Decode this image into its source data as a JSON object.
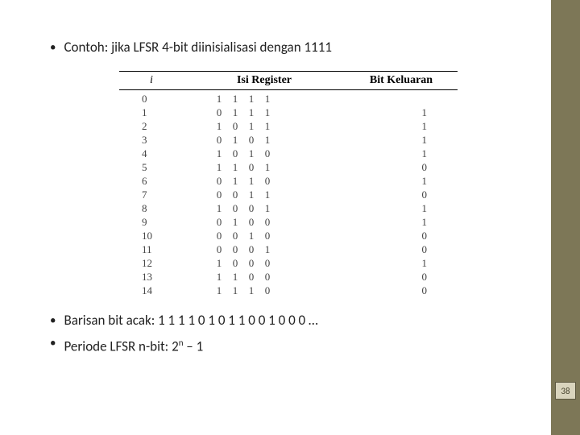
{
  "bullets": {
    "top": "Contoh: jika LFSR 4-bit diinisialisasi dengan 1111",
    "seq_prefix": "Barisan bit acak: ",
    "seq_bits": "1 1 1 1 0 1 0 1 1 0 0 1 0 0 0 …",
    "period_prefix": "Periode LFSR n-bit: 2",
    "period_exp": "n",
    "period_suffix": " – 1"
  },
  "table": {
    "hdr_i": "i",
    "hdr_reg": "Isi Register",
    "hdr_out": "Bit Keluaran",
    "rows": [
      {
        "i": "0",
        "r": [
          "1",
          "1",
          "1",
          "1"
        ],
        "o": ""
      },
      {
        "i": "1",
        "r": [
          "0",
          "1",
          "1",
          "1"
        ],
        "o": "1"
      },
      {
        "i": "2",
        "r": [
          "1",
          "0",
          "1",
          "1"
        ],
        "o": "1"
      },
      {
        "i": "3",
        "r": [
          "0",
          "1",
          "0",
          "1"
        ],
        "o": "1"
      },
      {
        "i": "4",
        "r": [
          "1",
          "0",
          "1",
          "0"
        ],
        "o": "1"
      },
      {
        "i": "5",
        "r": [
          "1",
          "1",
          "0",
          "1"
        ],
        "o": "0"
      },
      {
        "i": "6",
        "r": [
          "0",
          "1",
          "1",
          "0"
        ],
        "o": "1"
      },
      {
        "i": "7",
        "r": [
          "0",
          "0",
          "1",
          "1"
        ],
        "o": "0"
      },
      {
        "i": "8",
        "r": [
          "1",
          "0",
          "0",
          "1"
        ],
        "o": "1"
      },
      {
        "i": "9",
        "r": [
          "0",
          "1",
          "0",
          "0"
        ],
        "o": "1"
      },
      {
        "i": "10",
        "r": [
          "0",
          "0",
          "1",
          "0"
        ],
        "o": "0"
      },
      {
        "i": "11",
        "r": [
          "0",
          "0",
          "0",
          "1"
        ],
        "o": "0"
      },
      {
        "i": "12",
        "r": [
          "1",
          "0",
          "0",
          "0"
        ],
        "o": "1"
      },
      {
        "i": "13",
        "r": [
          "1",
          "1",
          "0",
          "0"
        ],
        "o": "0"
      },
      {
        "i": "14",
        "r": [
          "1",
          "1",
          "1",
          "0"
        ],
        "o": "0"
      }
    ]
  },
  "page_number": "38"
}
